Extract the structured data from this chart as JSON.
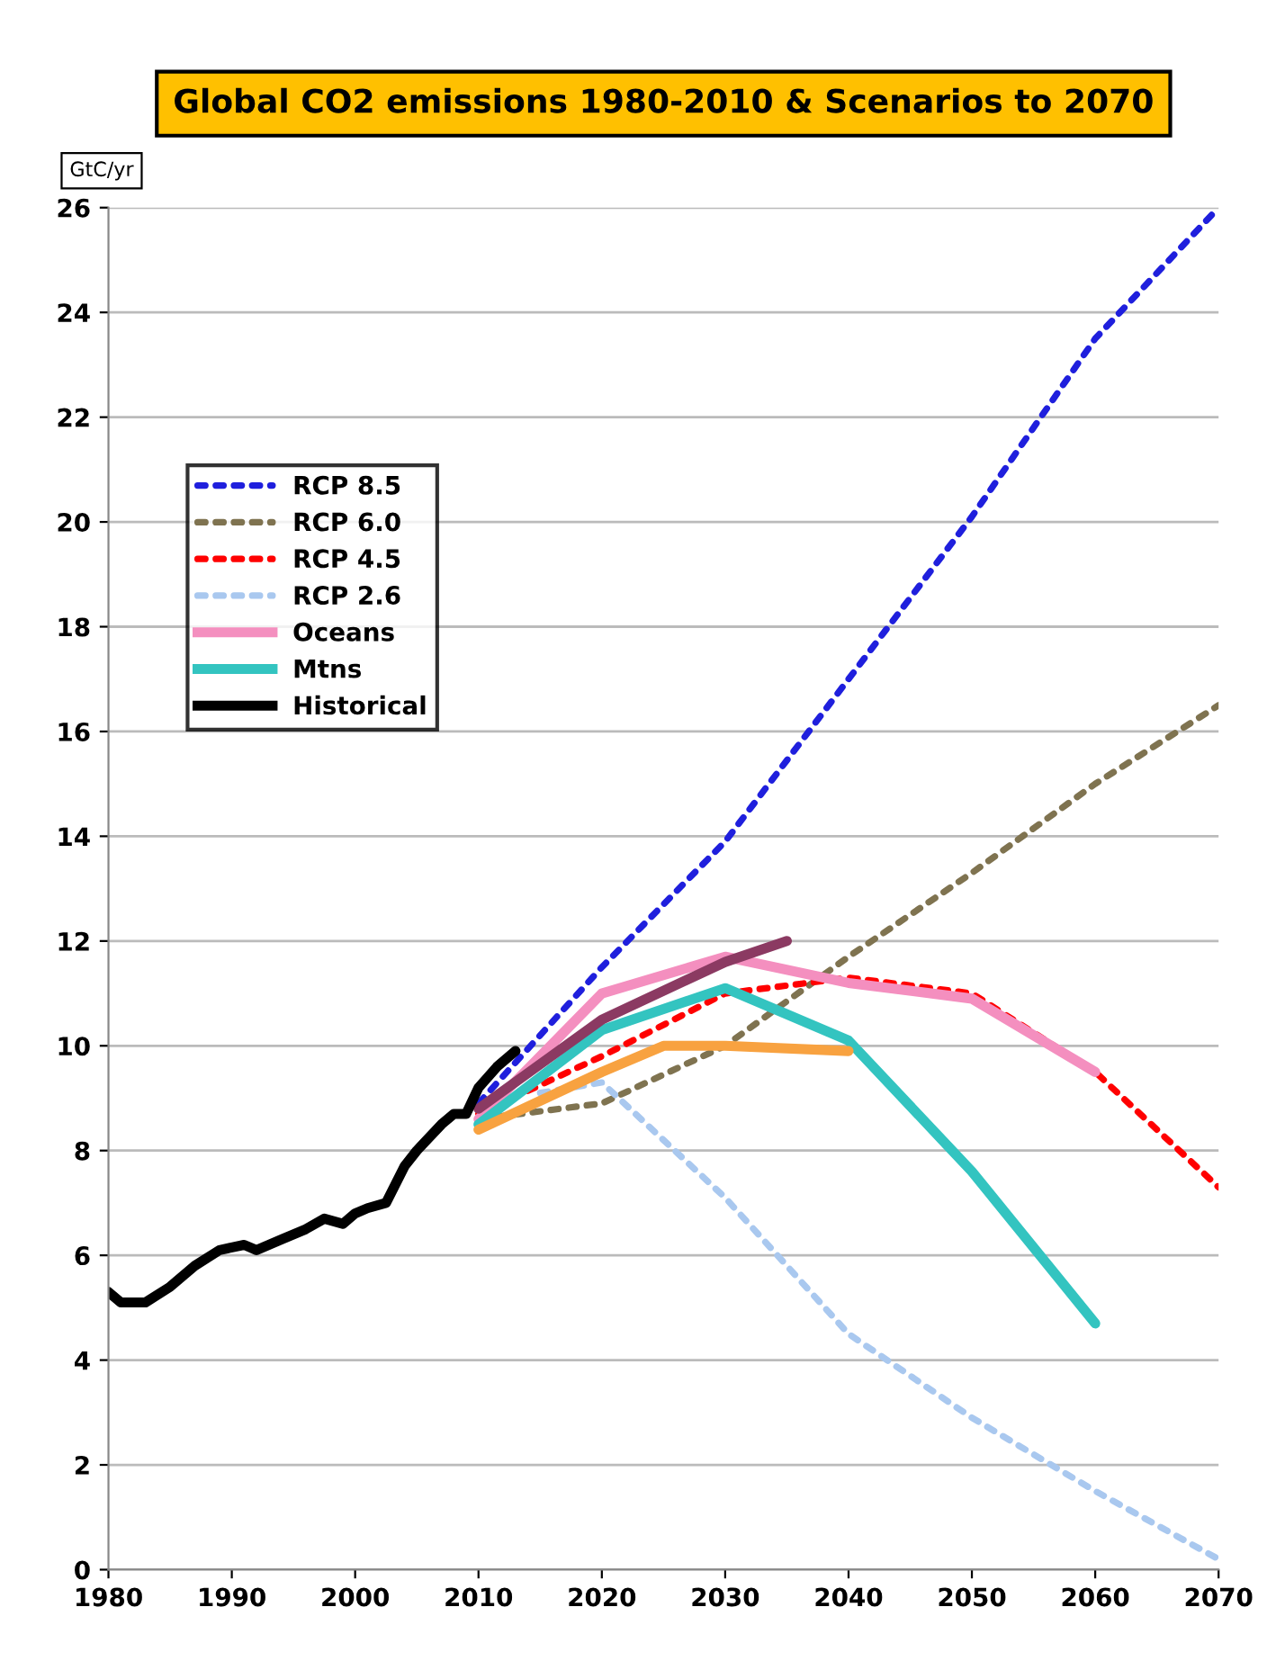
{
  "chart_data": {
    "type": "line",
    "title": "Global CO2 emissions 1980-2010 & Scenarios to 2070",
    "ylabel": "GtC/yr",
    "xlim": [
      1980,
      2070
    ],
    "xticks": [
      1980,
      1990,
      2000,
      2010,
      2020,
      2030,
      2040,
      2050,
      2060,
      2070
    ],
    "ylim": [
      0,
      26
    ],
    "yticks": [
      0,
      2,
      4,
      6,
      8,
      10,
      12,
      14,
      16,
      18,
      20,
      22,
      24,
      26
    ],
    "grid": "y",
    "legend": "top left",
    "marker": "none",
    "series": [
      {
        "name": "RCP 8.5",
        "color": "#1f1fdd",
        "line_style": "dotted",
        "x": [
          2010,
          2020,
          2030,
          2040,
          2050,
          2060,
          2070
        ],
        "values": [
          8.9,
          11.5,
          13.9,
          17.0,
          20.1,
          23.5,
          26.0
        ]
      },
      {
        "name": "RCP 6.0",
        "color": "#7f7350",
        "line_style": "dotted",
        "x": [
          2010,
          2020,
          2030,
          2040,
          2050,
          2060,
          2070
        ],
        "values": [
          8.6,
          8.9,
          10.0,
          11.7,
          13.3,
          15.0,
          16.5
        ]
      },
      {
        "name": "RCP 4.5",
        "color": "#ff0000",
        "line_style": "dotted",
        "x": [
          2010,
          2020,
          2030,
          2040,
          2050,
          2060,
          2070
        ],
        "values": [
          8.7,
          9.8,
          11.0,
          11.3,
          11.0,
          9.5,
          7.3
        ]
      },
      {
        "name": "RCP 2.6",
        "color": "#a9c8ef",
        "line_style": "dotted",
        "x": [
          2015,
          2020,
          2030,
          2040,
          2050,
          2060,
          2070
        ],
        "values": [
          9.1,
          9.3,
          7.1,
          4.5,
          2.9,
          1.5,
          0.2
        ]
      },
      {
        "name": "Oceans",
        "color": "#f48fbf",
        "line_style": "solid",
        "x": [
          2010,
          2020,
          2030,
          2040,
          2050,
          2060
        ],
        "values": [
          8.6,
          11.0,
          11.7,
          11.2,
          10.9,
          9.5
        ]
      },
      {
        "name": "Mtns",
        "color": "#33c4c0",
        "line_style": "solid",
        "x": [
          2010,
          2020,
          2030,
          2040,
          2050,
          2060
        ],
        "values": [
          8.5,
          10.3,
          11.1,
          10.1,
          7.6,
          4.7
        ]
      },
      {
        "color": "#8b3a62",
        "line_style": "solid",
        "x": [
          2010,
          2020,
          2030,
          2035
        ],
        "values": [
          8.8,
          10.5,
          11.6,
          12.0
        ]
      },
      {
        "color": "#f8a240",
        "line_style": "solid",
        "x": [
          2010,
          2020,
          2025,
          2030,
          2040
        ],
        "values": [
          8.4,
          9.5,
          10.0,
          10.0,
          9.9
        ]
      },
      {
        "name": "Historical",
        "color": "#000000",
        "line_style": "solid",
        "x": [
          1980,
          1981,
          1983,
          1985,
          1987,
          1989,
          1991,
          1992,
          1994,
          1996,
          1997.5,
          1999,
          2000,
          2001,
          2002.5,
          2004,
          2005,
          2007,
          2008,
          2009,
          2010,
          2011.5,
          2013
        ],
        "values": [
          5.3,
          5.1,
          5.1,
          5.4,
          5.8,
          6.1,
          6.2,
          6.1,
          6.3,
          6.5,
          6.7,
          6.6,
          6.8,
          6.9,
          7.0,
          7.7,
          8.0,
          8.5,
          8.7,
          8.7,
          9.2,
          9.6,
          9.9
        ]
      }
    ]
  }
}
